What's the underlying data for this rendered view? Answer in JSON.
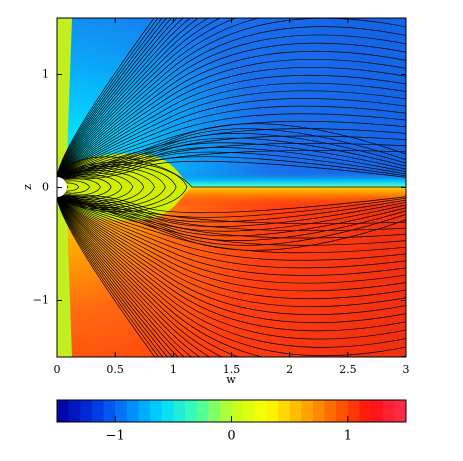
{
  "chart_data": {
    "type": "heatmap",
    "xlabel": "w",
    "ylabel": "z",
    "xlim": [
      0,
      3
    ],
    "ylim": [
      -1.5,
      1.5
    ],
    "xticks": [
      0,
      0.5,
      1,
      1.5,
      2,
      2.5,
      3
    ],
    "yticks": [
      {
        "value": -1,
        "label": "−1"
      },
      0,
      1
    ],
    "colorbar": {
      "clim": [
        -1.5,
        1.5
      ],
      "ticks": [
        {
          "value": -1,
          "label": "−1"
        },
        0,
        1
      ],
      "colormap": [
        "#0000a0",
        "#0030e0",
        "#0080ff",
        "#00d8ff",
        "#40ffb0",
        "#c0ff20",
        "#ffff00",
        "#ffb000",
        "#ff6000",
        "#ff1010",
        "#ff3050"
      ]
    }
  }
}
